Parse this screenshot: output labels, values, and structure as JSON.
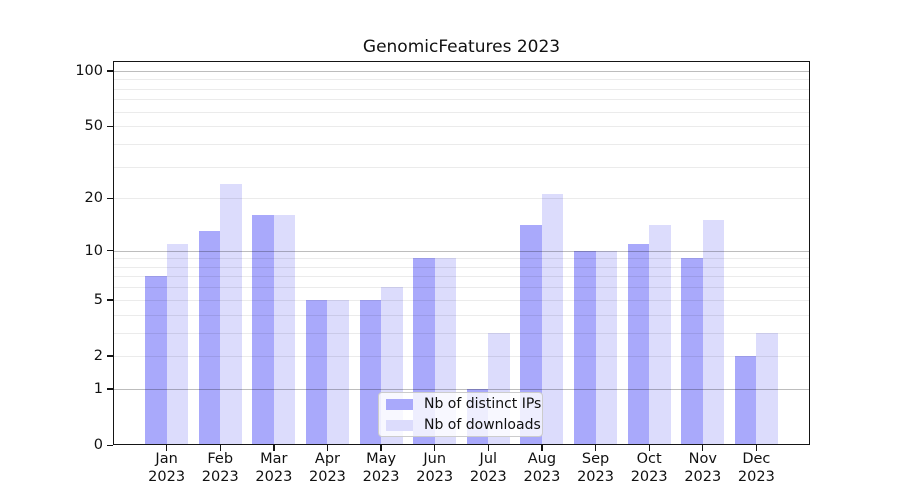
{
  "chart_data": {
    "type": "bar",
    "title": "GenomicFeatures 2023",
    "categories": [
      "Jan",
      "Feb",
      "Mar",
      "Apr",
      "May",
      "Jun",
      "Jul",
      "Aug",
      "Sep",
      "Oct",
      "Nov",
      "Dec"
    ],
    "year_label": "2023",
    "series": [
      {
        "name": "Nb of distinct IPs",
        "color": "#a9a9fb",
        "values": [
          7,
          13,
          16,
          5,
          5,
          9,
          1,
          14,
          10,
          11,
          9,
          2
        ]
      },
      {
        "name": "Nb of downloads",
        "color": "#dcdcfc",
        "values": [
          11,
          24,
          16,
          5,
          6,
          9,
          3,
          21,
          10,
          14,
          15,
          3
        ]
      }
    ],
    "y_axis": {
      "scale": "log10(1+v)",
      "tick_values": [
        0,
        1,
        2,
        5,
        10,
        20,
        50,
        100
      ],
      "tick_labels": [
        "0",
        "1",
        "2",
        "5",
        "10",
        "20",
        "50",
        "100"
      ],
      "major_gridlines": [
        1,
        10,
        100
      ],
      "minor_gridlines": [
        2,
        3,
        4,
        5,
        6,
        7,
        8,
        9,
        20,
        30,
        40,
        50,
        60,
        70,
        80,
        90
      ],
      "ylim": [
        0,
        113
      ]
    },
    "legend": {
      "position": "lower center"
    },
    "grid": true,
    "colors": {
      "frame": "#151515",
      "major_grid": "rgba(0,0,0,0.26)",
      "minor_grid": "rgba(0,0,0,0.08)",
      "legend_border": "#cccccc"
    }
  }
}
